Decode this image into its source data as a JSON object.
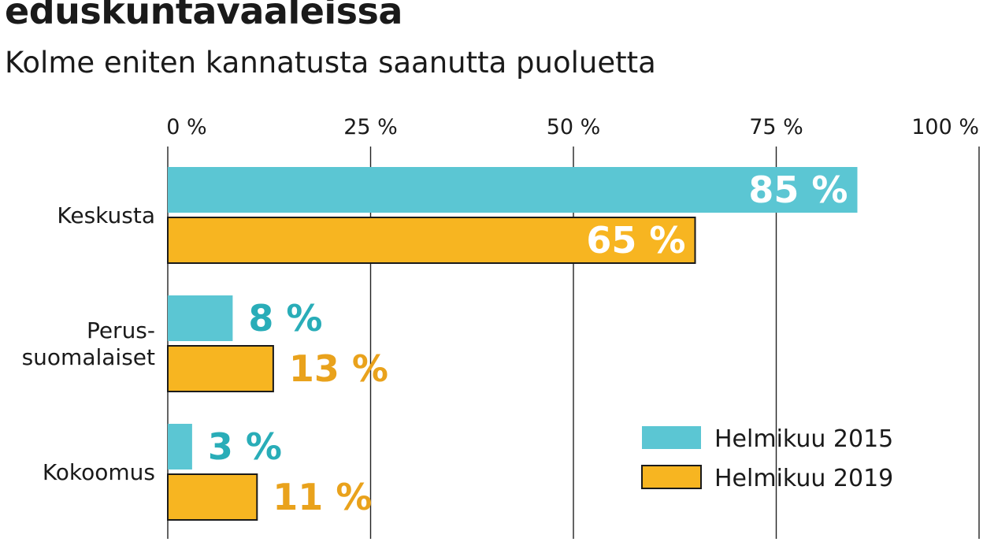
{
  "chart_data": {
    "type": "bar",
    "orientation": "horizontal",
    "title": "eduskuntavaaleissa",
    "subtitle": "Kolme eniten kannatusta saanutta puoluetta",
    "categories": [
      [
        "Keskusta"
      ],
      [
        "Perus-",
        "suomalaiset"
      ],
      [
        "Kokoomus"
      ]
    ],
    "series": [
      {
        "name": "Helmikuu 2015",
        "values": [
          85,
          8,
          3
        ],
        "labels": [
          "85 %",
          "8 %",
          "3 %"
        ],
        "color": "#5bc6d3"
      },
      {
        "name": "Helmikuu 2019",
        "values": [
          65,
          13,
          11
        ],
        "labels": [
          "65 %",
          "13 %",
          "11 %"
        ],
        "color": "#f7b521"
      }
    ],
    "xlim": [
      0,
      100
    ],
    "xticks": [
      0,
      25,
      50,
      75,
      100
    ],
    "xtick_labels": [
      "0 %",
      "25 %",
      "50 %",
      "75 %",
      "100 %"
    ],
    "grid": true,
    "legend_position": "bottom-right",
    "label_colors": {
      "inside": "#ffffff",
      "series_0_outside": "#29adb8",
      "series_1_outside": "#e9a21c"
    }
  }
}
